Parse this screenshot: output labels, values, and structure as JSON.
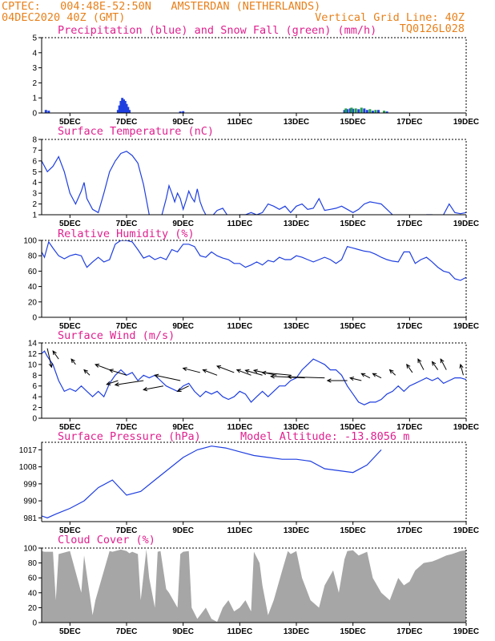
{
  "header": {
    "line1_left": "CPTEC:   004:48E-52:50N   AMSTERDAN (NETHERLANDS)",
    "line2_left": "04DEC2020 40Z (GMT)",
    "line2_right": "Vertical Grid Line: 40Z",
    "line3_right": "TQ0126L028"
  },
  "colors": {
    "header": "#e8801a",
    "title": "#e0208f",
    "line": "#1f3fe0",
    "cloud": "#a6a6a6",
    "snow": "#1fa044"
  },
  "x_axis": {
    "start_day": 4,
    "end_day": 19,
    "ticks": [
      {
        "day": 5,
        "label": "5DEC"
      },
      {
        "day": 7,
        "label": "7DEC"
      },
      {
        "day": 9,
        "label": "9DEC"
      },
      {
        "day": 11,
        "label": "11DEC"
      },
      {
        "day": 13,
        "label": "13DEC"
      },
      {
        "day": 15,
        "label": "15DEC"
      },
      {
        "day": 17,
        "label": "17DEC"
      },
      {
        "day": 19,
        "label": "19DEC"
      }
    ]
  },
  "chart_data": [
    {
      "type": "bar",
      "title": "Precipitation (blue) and Snow Fall (green) (mm/h)",
      "ylim": [
        0,
        5
      ],
      "yticks": [
        0,
        1,
        2,
        3,
        4,
        5
      ],
      "series": [
        {
          "color": "#1f3fe0",
          "points": [
            [
              4.15,
              0.2
            ],
            [
              4.25,
              0.15
            ],
            [
              6.7,
              0.2
            ],
            [
              6.75,
              0.5
            ],
            [
              6.8,
              0.8
            ],
            [
              6.85,
              1.0
            ],
            [
              6.9,
              0.9
            ],
            [
              6.95,
              0.8
            ],
            [
              7.0,
              0.6
            ],
            [
              7.05,
              0.4
            ],
            [
              7.1,
              0.2
            ],
            [
              8.9,
              0.1
            ],
            [
              9.0,
              0.12
            ],
            [
              14.7,
              0.2
            ],
            [
              14.8,
              0.25
            ],
            [
              14.9,
              0.3
            ],
            [
              15.0,
              0.28
            ],
            [
              15.2,
              0.25
            ],
            [
              15.4,
              0.3
            ],
            [
              15.5,
              0.2
            ],
            [
              15.7,
              0.15
            ],
            [
              15.9,
              0.2
            ],
            [
              16.2,
              0.1
            ]
          ]
        },
        {
          "color": "#1fa044",
          "points": [
            [
              14.75,
              0.3
            ],
            [
              14.95,
              0.35
            ],
            [
              15.1,
              0.3
            ],
            [
              15.3,
              0.35
            ],
            [
              15.6,
              0.25
            ],
            [
              15.8,
              0.2
            ],
            [
              16.1,
              0.15
            ]
          ]
        }
      ]
    },
    {
      "type": "line",
      "title": "Surface Temperature (nC)",
      "ylim": [
        1,
        8
      ],
      "yticks": [
        1,
        2,
        3,
        4,
        5,
        6,
        7,
        8
      ],
      "x": [
        4.0,
        4.2,
        4.4,
        4.6,
        4.8,
        5.0,
        5.2,
        5.4,
        5.5,
        5.6,
        5.8,
        6.0,
        6.2,
        6.4,
        6.6,
        6.8,
        7.0,
        7.2,
        7.4,
        7.6,
        7.8,
        8.0,
        8.2,
        8.4,
        8.5,
        8.6,
        8.7,
        8.8,
        8.9,
        9.0,
        9.1,
        9.2,
        9.3,
        9.4,
        9.5,
        9.6,
        9.7,
        9.8,
        9.9,
        10.0,
        10.2,
        10.4,
        10.6,
        10.8,
        11.0,
        11.2,
        11.4,
        11.6,
        11.8,
        12.0,
        12.2,
        12.4,
        12.6,
        12.8,
        13.0,
        13.2,
        13.4,
        13.6,
        13.8,
        14.0,
        14.2,
        14.4,
        14.6,
        14.8,
        15.0,
        15.2,
        15.4,
        15.6,
        15.8,
        16.0,
        16.2,
        16.4,
        16.6,
        16.8,
        17.0,
        17.2,
        17.4,
        17.6,
        17.8,
        18.0,
        18.2,
        18.4,
        18.6,
        18.8,
        19.0
      ],
      "values": [
        6.0,
        5.0,
        5.5,
        6.4,
        5.0,
        3.0,
        2.0,
        3.2,
        4.0,
        2.5,
        1.5,
        1.2,
        3.0,
        5.0,
        6.0,
        6.7,
        6.9,
        6.5,
        5.8,
        3.8,
        1.0,
        0.5,
        0.5,
        2.5,
        3.7,
        3.0,
        2.2,
        3.0,
        2.5,
        1.5,
        2.3,
        3.2,
        2.6,
        2.2,
        3.4,
        2.2,
        1.5,
        1.0,
        0.8,
        0.8,
        1.4,
        1.6,
        0.8,
        0.9,
        1.0,
        1.0,
        1.2,
        1.0,
        1.2,
        2.0,
        1.8,
        1.5,
        1.8,
        1.2,
        1.8,
        2.0,
        1.5,
        1.6,
        2.5,
        1.4,
        1.5,
        1.6,
        1.8,
        1.5,
        1.2,
        1.5,
        2.0,
        2.2,
        2.1,
        2.0,
        1.5,
        1.0,
        0.8,
        0.7,
        0.8,
        0.9,
        0.8,
        1.0,
        1.0,
        0.8,
        1.0,
        2.0,
        1.2,
        1.1,
        1.2
      ]
    },
    {
      "type": "line",
      "title": "Relative Humidity (%)",
      "ylim": [
        0,
        100
      ],
      "yticks": [
        0,
        20,
        40,
        60,
        80,
        100
      ],
      "x": [
        4.0,
        4.1,
        4.25,
        4.4,
        4.6,
        4.8,
        5.0,
        5.2,
        5.4,
        5.5,
        5.6,
        5.8,
        6.0,
        6.2,
        6.4,
        6.6,
        6.8,
        7.0,
        7.2,
        7.4,
        7.6,
        7.8,
        8.0,
        8.2,
        8.4,
        8.6,
        8.8,
        9.0,
        9.2,
        9.4,
        9.6,
        9.8,
        10.0,
        10.2,
        10.4,
        10.6,
        10.8,
        11.0,
        11.2,
        11.4,
        11.6,
        11.8,
        12.0,
        12.2,
        12.4,
        12.6,
        12.8,
        13.0,
        13.2,
        13.4,
        13.6,
        13.8,
        14.0,
        14.2,
        14.4,
        14.6,
        14.8,
        15.0,
        15.2,
        15.4,
        15.6,
        15.8,
        16.0,
        16.2,
        16.4,
        16.6,
        16.8,
        17.0,
        17.2,
        17.4,
        17.6,
        17.8,
        18.0,
        18.2,
        18.4,
        18.6,
        18.8,
        19.0
      ],
      "values": [
        85,
        78,
        98,
        90,
        80,
        76,
        80,
        82,
        80,
        72,
        65,
        72,
        78,
        72,
        75,
        95,
        100,
        100,
        98,
        88,
        77,
        80,
        75,
        78,
        75,
        88,
        85,
        95,
        95,
        92,
        80,
        78,
        85,
        80,
        77,
        75,
        70,
        70,
        65,
        68,
        72,
        68,
        74,
        72,
        78,
        75,
        75,
        80,
        78,
        75,
        72,
        75,
        78,
        75,
        70,
        75,
        92,
        90,
        88,
        86,
        85,
        82,
        78,
        75,
        73,
        72,
        85,
        85,
        70,
        75,
        78,
        72,
        65,
        60,
        58,
        50,
        48,
        52
      ]
    },
    {
      "type": "line",
      "title": "Surface Wind (m/s)",
      "ylim": [
        0,
        14
      ],
      "yticks": [
        0,
        2,
        4,
        6,
        8,
        10,
        12,
        14
      ],
      "x": [
        4.0,
        4.1,
        4.2,
        4.4,
        4.6,
        4.8,
        5.0,
        5.2,
        5.4,
        5.6,
        5.8,
        6.0,
        6.2,
        6.4,
        6.6,
        6.8,
        7.0,
        7.2,
        7.4,
        7.6,
        7.8,
        8.0,
        8.2,
        8.4,
        8.6,
        8.8,
        9.0,
        9.2,
        9.4,
        9.6,
        9.8,
        10.0,
        10.2,
        10.4,
        10.6,
        10.8,
        11.0,
        11.2,
        11.4,
        11.6,
        11.8,
        12.0,
        12.2,
        12.4,
        12.6,
        12.8,
        13.0,
        13.2,
        13.4,
        13.6,
        13.8,
        14.0,
        14.2,
        14.4,
        14.6,
        14.8,
        15.0,
        15.2,
        15.4,
        15.6,
        15.8,
        16.0,
        16.2,
        16.4,
        16.6,
        16.8,
        17.0,
        17.2,
        17.4,
        17.6,
        17.8,
        18.0,
        18.2,
        18.4,
        18.6,
        18.8,
        19.0
      ],
      "values": [
        12,
        12.5,
        11.5,
        10,
        7,
        5,
        5.5,
        5,
        6,
        5,
        4,
        5,
        4,
        6.5,
        8,
        9,
        8,
        8.5,
        7,
        8,
        7.5,
        8,
        7,
        6,
        5.5,
        5,
        6,
        6.5,
        5,
        4,
        5,
        4.5,
        5,
        4,
        3.5,
        4,
        5,
        4.5,
        3,
        4,
        5,
        4,
        5,
        6,
        6,
        7,
        7.5,
        9,
        10,
        11,
        10.5,
        10,
        9,
        9,
        8,
        6,
        4.5,
        3,
        2.5,
        3,
        3,
        3.5,
        4.5,
        5,
        6,
        5,
        6,
        6.5,
        7,
        7.5,
        7,
        7.5,
        6.5,
        7,
        7.5,
        7.5,
        7.2
      ]
    },
    {
      "type": "line",
      "title": "Surface Pressure (hPa)",
      "annotation": "Model Altitude: -13.8056 m",
      "ylim": [
        979,
        1021
      ],
      "yticks": [
        981,
        990,
        999,
        1008,
        1017
      ],
      "x": [
        4.0,
        4.2,
        4.5,
        5.0,
        5.5,
        6.0,
        6.5,
        7.0,
        7.5,
        8.0,
        8.5,
        9.0,
        9.5,
        10.0,
        10.5,
        11.0,
        11.5,
        12.0,
        12.5,
        13.0,
        13.5,
        14.0,
        14.5,
        15.0,
        15.5,
        16.0
      ],
      "values": [
        982,
        981,
        983,
        986,
        990,
        997,
        1001,
        993,
        995,
        1001,
        1007,
        1013,
        1017,
        1019,
        1018,
        1016,
        1014,
        1013,
        1012,
        1012,
        1011,
        1007,
        1006,
        1005,
        1009,
        1017
      ]
    },
    {
      "type": "area",
      "title": "Cloud Cover (%)",
      "ylim": [
        0,
        100
      ],
      "yticks": [
        0,
        20,
        40,
        60,
        80,
        100
      ],
      "x": [
        4.0,
        4.1,
        4.4,
        4.5,
        4.6,
        4.9,
        5.0,
        5.4,
        5.5,
        5.8,
        5.9,
        6.4,
        6.5,
        6.8,
        7.0,
        7.1,
        7.2,
        7.4,
        7.5,
        7.7,
        7.8,
        8.0,
        8.1,
        8.2,
        8.4,
        8.5,
        8.8,
        8.9,
        9.0,
        9.2,
        9.3,
        9.5,
        9.6,
        9.8,
        10.0,
        10.2,
        10.4,
        10.6,
        10.8,
        11.0,
        11.2,
        11.4,
        11.5,
        11.7,
        11.8,
        12.0,
        12.2,
        12.5,
        12.7,
        12.8,
        13.0,
        13.2,
        13.5,
        13.8,
        14.0,
        14.3,
        14.5,
        14.7,
        14.8,
        15.0,
        15.2,
        15.5,
        15.7,
        16.0,
        16.3,
        16.4,
        16.6,
        16.8,
        17.0,
        17.2,
        17.5,
        17.8,
        18.0,
        18.3,
        18.5,
        18.8,
        19.0
      ],
      "values": [
        96,
        95,
        95,
        30,
        92,
        95,
        96,
        40,
        90,
        10,
        30,
        96,
        95,
        98,
        96,
        93,
        95,
        92,
        30,
        98,
        60,
        20,
        95,
        96,
        45,
        40,
        20,
        92,
        95,
        96,
        20,
        5,
        10,
        20,
        5,
        1,
        20,
        30,
        15,
        20,
        30,
        15,
        95,
        80,
        50,
        10,
        30,
        70,
        96,
        92,
        96,
        60,
        30,
        20,
        50,
        70,
        40,
        85,
        96,
        97,
        90,
        95,
        60,
        40,
        30,
        40,
        60,
        50,
        55,
        70,
        80,
        82,
        85,
        90,
        92,
        96,
        97
      ]
    }
  ],
  "wind_barbs": {
    "note": "direction vectors (dx,dy) in data units of days and m/s on the wind panel",
    "points": [
      [
        4.2,
        13,
        0.15,
        -3.5
      ],
      [
        4.6,
        11,
        -0.2,
        1.5
      ],
      [
        5.2,
        10,
        -0.15,
        1.0
      ],
      [
        5.7,
        8,
        -0.2,
        1.0
      ],
      [
        6.4,
        9,
        -0.5,
        1.0
      ],
      [
        6.7,
        7,
        -0.4,
        -0.7
      ],
      [
        7.0,
        8,
        -0.6,
        1.0
      ],
      [
        7.6,
        7,
        -1.0,
        -0.8
      ],
      [
        8.3,
        6,
        -0.7,
        -0.7
      ],
      [
        8.9,
        7,
        -0.9,
        1.0
      ],
      [
        9.2,
        6,
        -0.4,
        -1.0
      ],
      [
        9.6,
        8.5,
        -0.6,
        0.8
      ],
      [
        10.2,
        8,
        -0.5,
        1.0
      ],
      [
        10.8,
        8.5,
        -0.6,
        1.2
      ],
      [
        11.4,
        8,
        -0.5,
        1.0
      ],
      [
        11.8,
        8,
        -0.6,
        0.9
      ],
      [
        12.3,
        8,
        -0.8,
        0.9
      ],
      [
        12.8,
        8,
        -1.0,
        0.5
      ],
      [
        13.3,
        7.5,
        -1.2,
        0.3
      ],
      [
        14.0,
        7.5,
        -1.3,
        0.2
      ],
      [
        14.8,
        7,
        -0.7,
        0.0
      ],
      [
        15.3,
        7,
        -0.4,
        0.5
      ],
      [
        15.6,
        7.5,
        -0.3,
        0.8
      ],
      [
        16.0,
        7.5,
        -0.3,
        0.8
      ],
      [
        16.5,
        8,
        -0.2,
        1.0
      ],
      [
        17.1,
        8.5,
        -0.2,
        1.5
      ],
      [
        17.5,
        9,
        -0.2,
        2.0
      ],
      [
        18.0,
        9,
        -0.2,
        1.5
      ],
      [
        18.3,
        9,
        -0.2,
        2.0
      ],
      [
        18.9,
        8,
        -0.1,
        2.0
      ]
    ]
  }
}
